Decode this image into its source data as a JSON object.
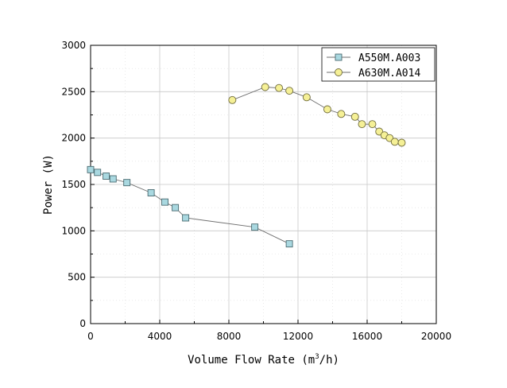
{
  "chart_data": {
    "type": "line",
    "title": "",
    "xlabel": "Volume Flow Rate (m",
    "xlabel_sup": "3",
    "xlabel_end": "/h)",
    "ylabel": "Power (W)",
    "xlim": [
      0,
      20000
    ],
    "ylim": [
      0,
      3000
    ],
    "xticks": [
      0,
      4000,
      8000,
      12000,
      16000,
      20000
    ],
    "yticks": [
      0,
      500,
      1000,
      1500,
      2000,
      2500,
      3000
    ],
    "grid": true,
    "legend_position": "top-right",
    "series": [
      {
        "name": "A550M.A003",
        "marker": "square",
        "color": "#a9d8e0",
        "x": [
          0,
          400,
          900,
          1300,
          2100,
          3500,
          4300,
          4900,
          5500,
          9500,
          11500
        ],
        "y": [
          1660,
          1630,
          1590,
          1560,
          1520,
          1410,
          1310,
          1250,
          1140,
          1040,
          860
        ]
      },
      {
        "name": "A630M.A014",
        "marker": "circle",
        "color": "#f5f096",
        "x": [
          8200,
          10100,
          10900,
          11500,
          12500,
          13700,
          14500,
          15300,
          15700,
          16300,
          16700,
          17000,
          17300,
          17600,
          18000
        ],
        "y": [
          2410,
          2550,
          2540,
          2510,
          2440,
          2310,
          2260,
          2230,
          2150,
          2150,
          2070,
          2030,
          2000,
          1960,
          1950
        ]
      }
    ]
  }
}
